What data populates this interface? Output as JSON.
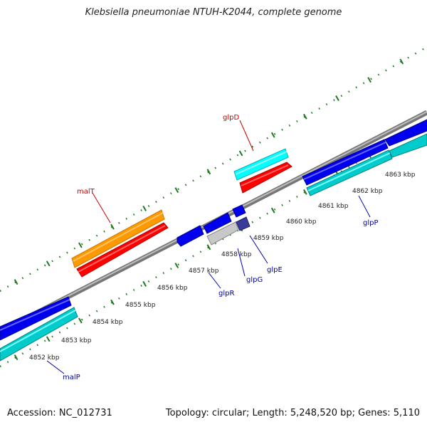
{
  "title": "Klebsiella pneumoniae NTUH-K2044, complete genome",
  "footer": {
    "accession": "Accession: NC_012731",
    "summary": "Topology: circular; Length: 5,248,520 bp; Genes: 5,110"
  },
  "colors": {
    "backbone": "#8a8a8a",
    "tick": "#1f7a1f",
    "label_red": "#cc0000",
    "label_blue": "#0000aa",
    "orange": "#ff9900",
    "red": "#ff0000",
    "blue": "#0000ee",
    "cyan": "#00e5e5",
    "grey": "#c8c8c8",
    "navy": "#3a3a9a"
  },
  "scale_labels": [
    "4852 kbp",
    "4853 kbp",
    "4854 kbp",
    "4855 kbp",
    "4856 kbp",
    "4857 kbp",
    "4858 kbp",
    "4859 kbp",
    "4860 kbp",
    "4861 kbp",
    "4862 kbp",
    "4863 kbp"
  ],
  "genes_above": [
    "malT",
    "glpD"
  ],
  "genes_below": [
    "malP",
    "glpR",
    "glpG",
    "glpE",
    "glpP"
  ]
}
